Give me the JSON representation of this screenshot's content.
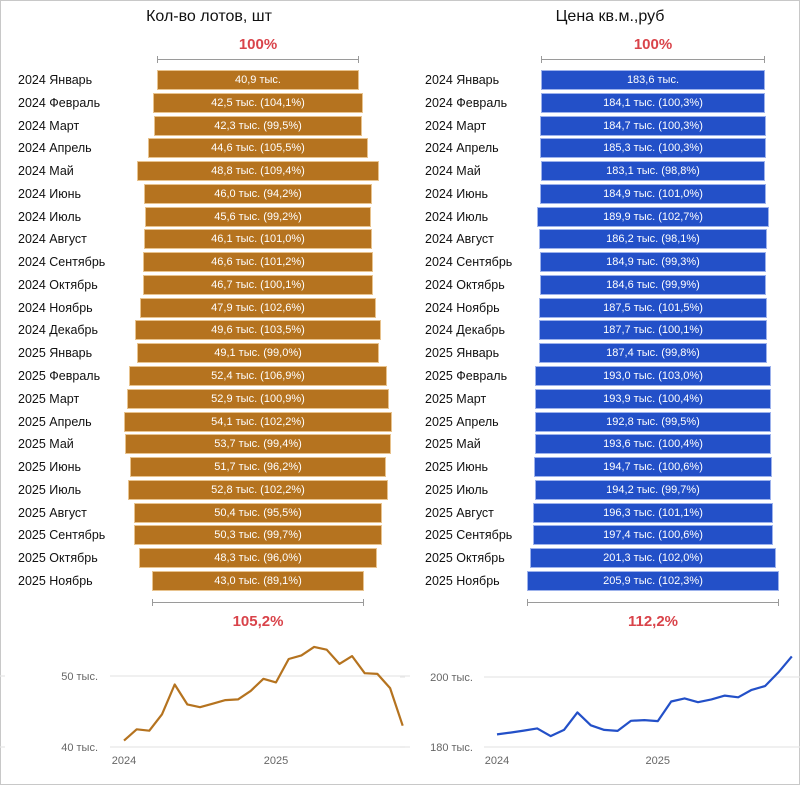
{
  "colors": {
    "lots": "#b5731f",
    "price": "#2350c8",
    "percent_text": "#d9434a",
    "grid": "#e6e6e6",
    "axis_text": "#666666"
  },
  "chart_data": [
    {
      "type": "bar",
      "style": "funnel",
      "title": "Кол-во лотов, шт",
      "top_percent": "100%",
      "bottom_percent": "105,2%",
      "categories": [
        "2024 Январь",
        "2024 Февраль",
        "2024 Март",
        "2024 Апрель",
        "2024 Май",
        "2024 Июнь",
        "2024 Июль",
        "2024 Август",
        "2024 Сентябрь",
        "2024 Октябрь",
        "2024 Ноябрь",
        "2024 Декабрь",
        "2025 Январь",
        "2025 Февраль",
        "2025 Март",
        "2025 Апрель",
        "2025 Май",
        "2025 Июнь",
        "2025 Июль",
        "2025 Август",
        "2025 Сентябрь",
        "2025 Октябрь",
        "2025 Ноябрь"
      ],
      "values": [
        40.9,
        42.5,
        42.3,
        44.6,
        48.8,
        46.0,
        45.6,
        46.1,
        46.6,
        46.7,
        47.9,
        49.6,
        49.1,
        52.4,
        52.9,
        54.1,
        53.7,
        51.7,
        52.8,
        50.4,
        50.3,
        48.3,
        43.0
      ],
      "value_labels": [
        "40,9 тыс.",
        "42,5 тыс. (104,1%)",
        "42,3 тыс. (99,5%)",
        "44,6 тыс. (105,5%)",
        "48,8 тыс. (109,4%)",
        "46,0 тыс. (94,2%)",
        "45,6 тыс. (99,2%)",
        "46,1 тыс. (101,0%)",
        "46,6 тыс. (101,2%)",
        "46,7 тыс. (100,1%)",
        "47,9 тыс. (102,6%)",
        "49,6 тыс. (103,5%)",
        "49,1 тыс. (99,0%)",
        "52,4 тыс. (106,9%)",
        "52,9 тыс. (100,9%)",
        "54,1 тыс. (102,2%)",
        "53,7 тыс. (99,4%)",
        "51,7 тыс. (96,2%)",
        "52,8 тыс. (102,2%)",
        "50,4 тыс. (95,5%)",
        "50,3 тыс. (99,7%)",
        "48,3 тыс. (96,0%)",
        "43,0 тыс. (89,1%)"
      ],
      "unit": "тыс."
    },
    {
      "type": "bar",
      "style": "funnel",
      "title": "Цена кв.м.,руб",
      "top_percent": "100%",
      "bottom_percent": "112,2%",
      "categories": [
        "2024 Январь",
        "2024 Февраль",
        "2024 Март",
        "2024 Апрель",
        "2024 Май",
        "2024 Июнь",
        "2024 Июль",
        "2024 Август",
        "2024 Сентябрь",
        "2024 Октябрь",
        "2024 Ноябрь",
        "2024 Декабрь",
        "2025 Январь",
        "2025 Февраль",
        "2025 Март",
        "2025 Апрель",
        "2025 Май",
        "2025 Июнь",
        "2025 Июль",
        "2025 Август",
        "2025 Сентябрь",
        "2025 Октябрь",
        "2025 Ноябрь"
      ],
      "values": [
        183.6,
        184.1,
        184.7,
        185.3,
        183.1,
        184.9,
        189.9,
        186.2,
        184.9,
        184.6,
        187.5,
        187.7,
        187.4,
        193.0,
        193.9,
        192.8,
        193.6,
        194.7,
        194.2,
        196.3,
        197.4,
        201.3,
        205.9
      ],
      "value_labels": [
        "183,6 тыс.",
        "184,1 тыс. (100,3%)",
        "184,7 тыс. (100,3%)",
        "185,3 тыс. (100,3%)",
        "183,1 тыс. (98,8%)",
        "184,9 тыс. (101,0%)",
        "189,9 тыс. (102,7%)",
        "186,2 тыс. (98,1%)",
        "184,9 тыс. (99,3%)",
        "184,6 тыс. (99,9%)",
        "187,5 тыс. (101,5%)",
        "187,7 тыс. (100,1%)",
        "187,4 тыс. (99,8%)",
        "193,0 тыс. (103,0%)",
        "193,9 тыс. (100,4%)",
        "192,8 тыс. (99,5%)",
        "193,6 тыс. (100,4%)",
        "194,7 тыс. (100,6%)",
        "194,2 тыс. (99,7%)",
        "196,3 тыс. (101,1%)",
        "197,4 тыс. (100,6%)",
        "201,3 тыс. (102,0%)",
        "205,9 тыс. (102,3%)"
      ],
      "unit": "тыс."
    },
    {
      "type": "line",
      "series_ref": "lots",
      "x_ticks": [
        "2024",
        "2025"
      ],
      "y_ticks": [
        {
          "value": 40,
          "label": "40 тыс."
        },
        {
          "value": 50,
          "label": "50 тыс."
        }
      ],
      "ylim": [
        40,
        55
      ],
      "grid": true
    },
    {
      "type": "line",
      "series_ref": "price",
      "x_ticks": [
        "2024",
        "2025"
      ],
      "y_ticks": [
        {
          "value": 180,
          "label": "180 тыс."
        },
        {
          "value": 200,
          "label": "200 тыс."
        }
      ],
      "ylim": [
        180,
        206
      ],
      "grid": true
    }
  ]
}
